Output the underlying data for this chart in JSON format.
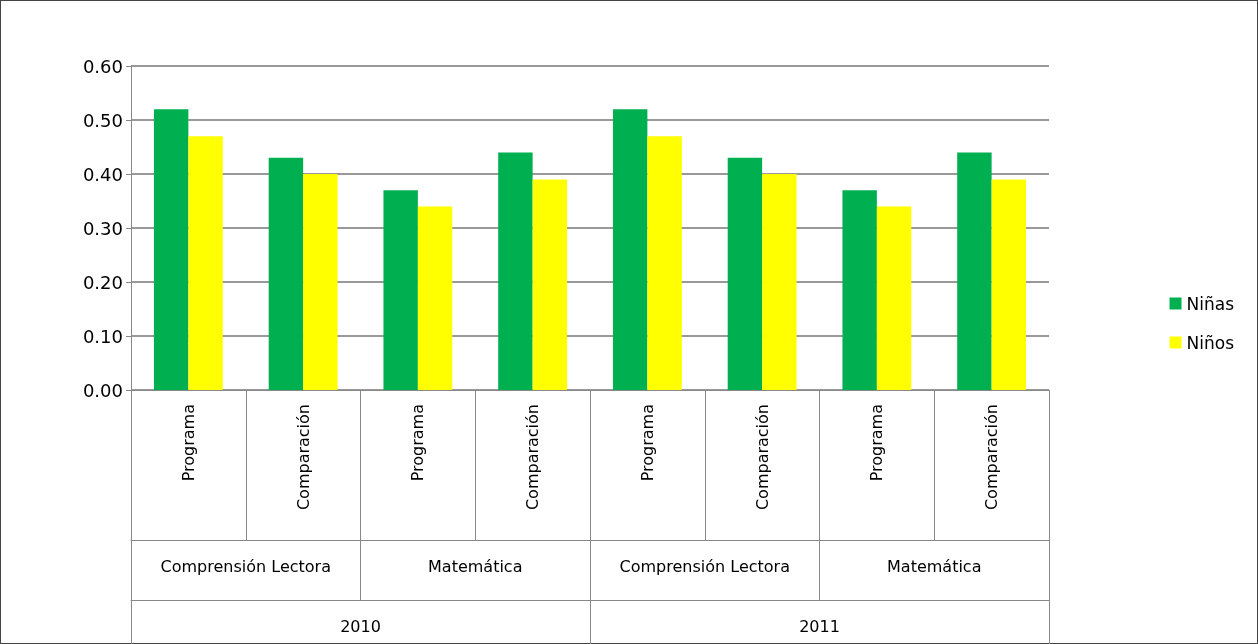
{
  "chart_data": {
    "type": "bar",
    "categories": [
      "Programa",
      "Comparación",
      "Programa",
      "Comparación",
      "Programa",
      "Comparación",
      "Programa",
      "Comparación"
    ],
    "series": [
      {
        "name": "Niñas",
        "color": "#00b050",
        "values": [
          0.52,
          0.43,
          0.37,
          0.44,
          0.52,
          0.43,
          0.37,
          0.44
        ]
      },
      {
        "name": "Niños",
        "color": "#ffff00",
        "values": [
          0.47,
          0.4,
          0.34,
          0.39,
          0.47,
          0.4,
          0.34,
          0.39
        ]
      }
    ],
    "annotations": [
      "Comprensión Lectora",
      "Matemática",
      "Comprensión Lectora",
      "Matemática",
      "2010",
      "2011"
    ],
    "ylim": [
      0,
      0.6
    ],
    "yticks": [
      {
        "value": 0,
        "label": "0.00"
      },
      {
        "value": 0.1,
        "label": "0.10"
      },
      {
        "value": 0.2,
        "label": "0.20"
      },
      {
        "value": 0.3,
        "label": "0.30"
      },
      {
        "value": 0.4,
        "label": "0.40"
      },
      {
        "value": 0.5,
        "label": "0.50"
      },
      {
        "value": 0.6,
        "label": "0.60"
      }
    ],
    "grid": "y",
    "legend": "right"
  }
}
